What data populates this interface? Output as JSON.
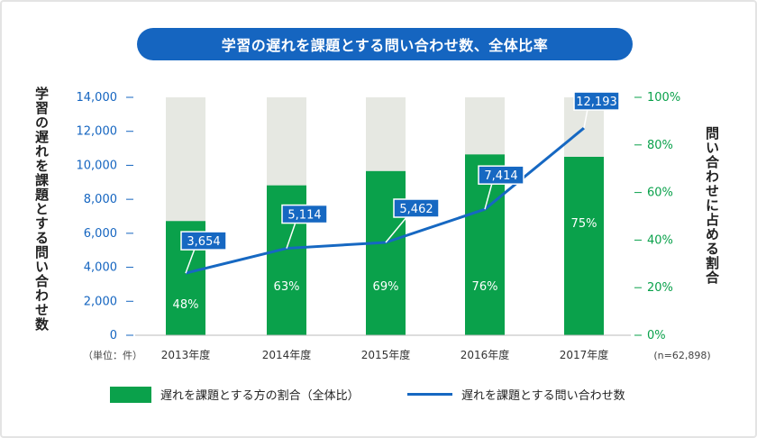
{
  "title": "学習の遅れを課題とする問い合わせ数、全体比率",
  "y_left_label": "学習の遅れを課題とする問い合わせ数",
  "y_right_label": "問い合わせに占める割合",
  "unit_note": "（単位：件）",
  "n_note": "(n=62,898)",
  "legend": {
    "bar_label": "遅れを課題とする方の割合（全体比）",
    "line_label": "遅れを課題とする問い合わせ数"
  },
  "colors": {
    "bar": "#0aa14b",
    "bar_background": "#e6e8e2",
    "line": "#1668c2",
    "title_bg": "#1565c0",
    "left_axis": "#1565c0",
    "right_axis": "#0aa14b"
  },
  "chart_data": {
    "type": "bar+line",
    "categories": [
      "2013年度",
      "2014年度",
      "2015年度",
      "2016年度",
      "2017年度"
    ],
    "bars": {
      "name": "遅れを課題とする方の割合（全体比）",
      "values": [
        48,
        63,
        69,
        76,
        75
      ],
      "labels": [
        "48%",
        "63%",
        "69%",
        "76%",
        "75%"
      ]
    },
    "line": {
      "name": "遅れを課題とする問い合わせ数",
      "values": [
        3654,
        5114,
        5462,
        7414,
        12193
      ],
      "labels": [
        "3,654",
        "5,114",
        "5,462",
        "7,414",
        "12,193"
      ]
    },
    "y_left": {
      "min": 0,
      "max": 14000,
      "ticks": [
        "0",
        "2,000",
        "4,000",
        "6,000",
        "8,000",
        "10,000",
        "12,000",
        "14,000"
      ]
    },
    "y_right": {
      "min": 0,
      "max": 100,
      "ticks": [
        "0%",
        "20%",
        "40%",
        "60%",
        "80%",
        "100%"
      ]
    },
    "grid": false,
    "legend_position": "bottom"
  }
}
